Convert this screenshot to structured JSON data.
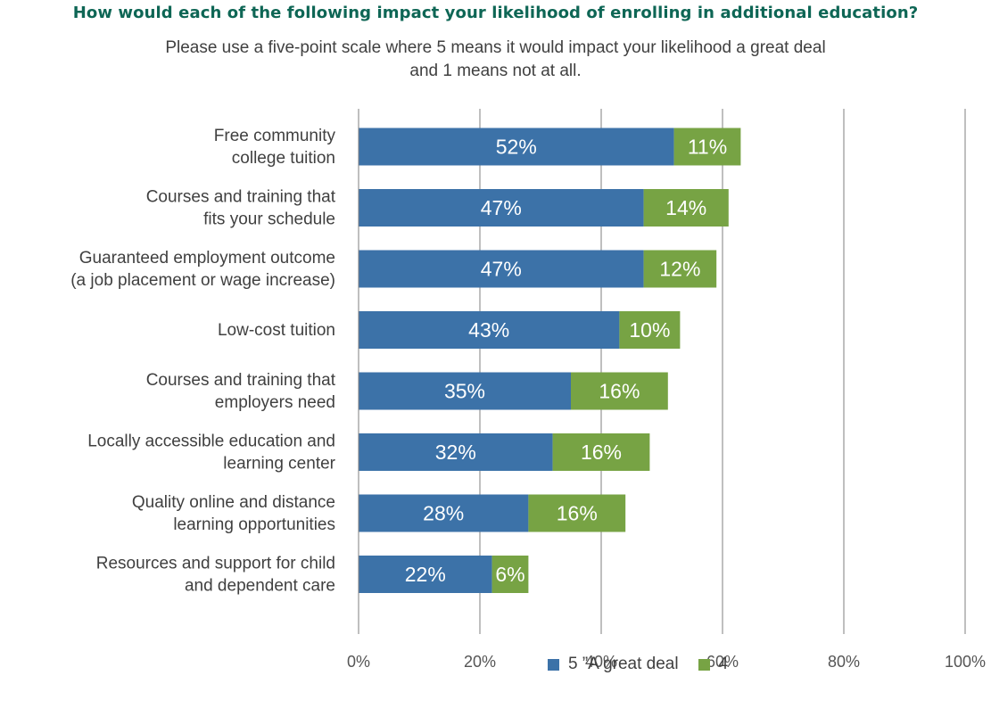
{
  "chart_data": {
    "type": "bar",
    "orientation": "horizontal",
    "stacked": true,
    "title": "How would each of the following impact your likelihood of enrolling in additional education?",
    "subtitle": [
      "Please use a five-point scale where 5 means it would impact your likelihood a great deal",
      "and 1 means not at all."
    ],
    "categories": [
      [
        "Free community",
        "college tuition"
      ],
      [
        "Courses and training that",
        "fits your schedule"
      ],
      [
        "Guaranteed employment outcome",
        "(a job placement or wage increase)"
      ],
      [
        "Low-cost tuition"
      ],
      [
        "Courses and training that",
        "employers need"
      ],
      [
        "Locally accessible education and",
        "learning center"
      ],
      [
        "Quality online and distance",
        "learning opportunities"
      ],
      [
        "Resources and support for child",
        "and dependent care"
      ]
    ],
    "series": [
      {
        "name": "5 ”A great deal",
        "color": "#3c72a8",
        "values": [
          52,
          47,
          47,
          43,
          35,
          32,
          28,
          22
        ],
        "labels": [
          "52%",
          "47%",
          "47%",
          "43%",
          "35%",
          "32%",
          "28%",
          "22%"
        ]
      },
      {
        "name": "4",
        "color": "#77a344",
        "values": [
          11,
          14,
          12,
          10,
          16,
          16,
          16,
          6
        ],
        "labels": [
          "11%",
          "14%",
          "12%",
          "10%",
          "16%",
          "16%",
          "16%",
          "6%"
        ]
      }
    ],
    "xlim": [
      0,
      100
    ],
    "xticks": [
      "0%",
      "20%",
      "40%",
      "60%",
      "80%",
      "100%"
    ],
    "grid": true,
    "legend_position": "bottom"
  }
}
